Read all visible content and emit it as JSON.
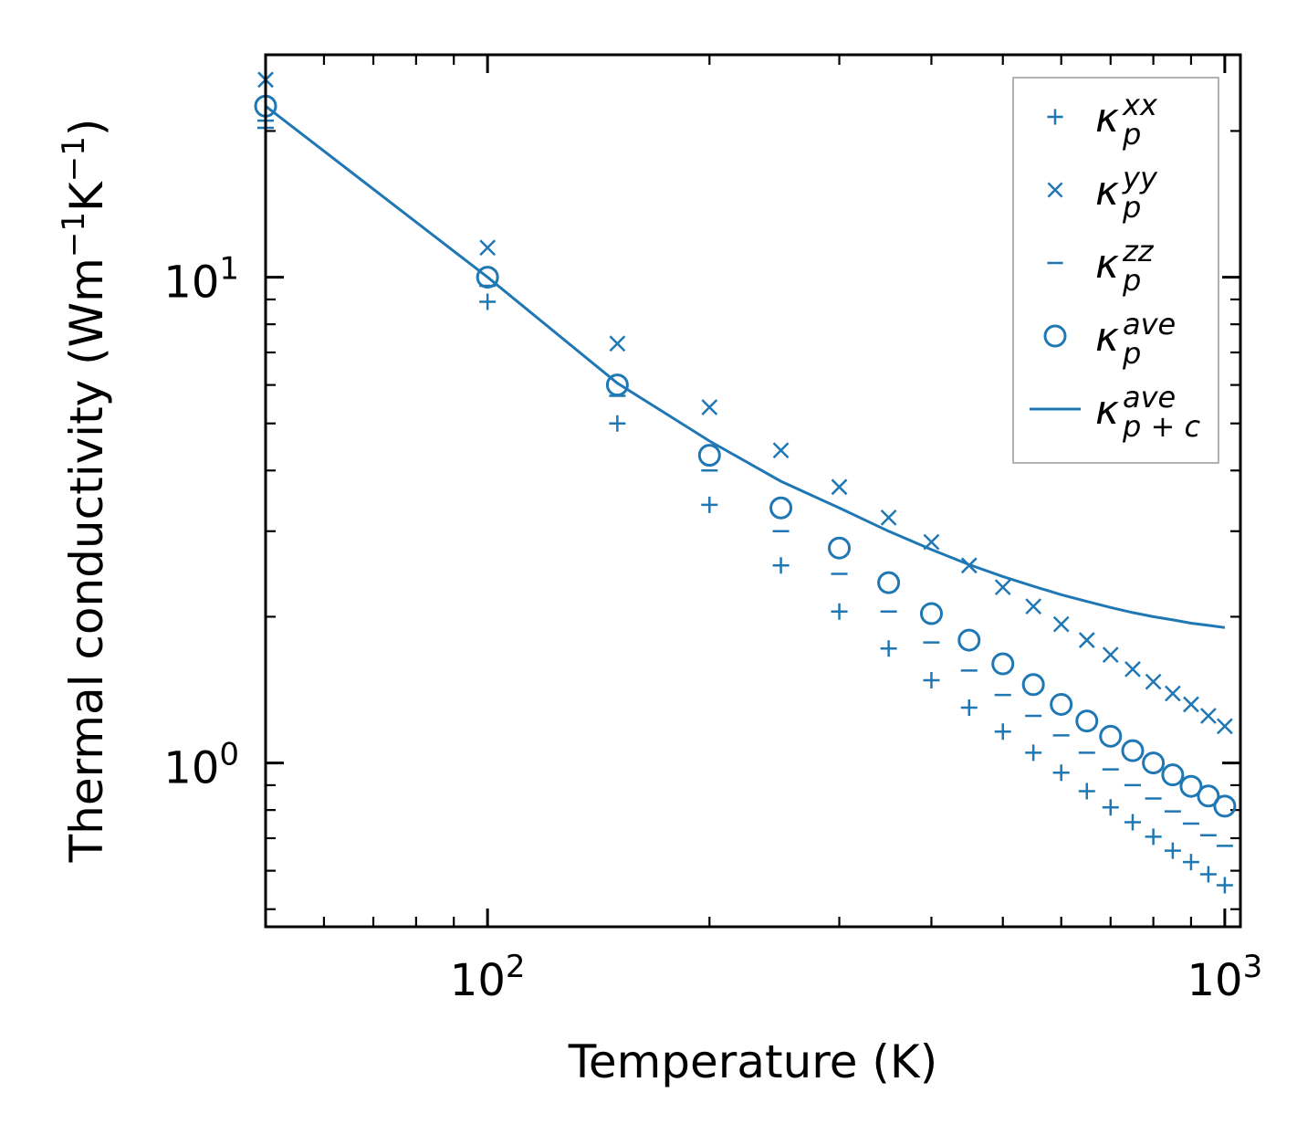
{
  "chart_data": {
    "type": "scatter",
    "title": "",
    "xlabel": "Temperature (K)",
    "ylabel": "Thermal conductivity (Wm",
    "ylabel_parts": {
      "base": "Thermal conductivity (Wm",
      "sup1": "−1",
      "mid": "K",
      "sup2": "−1",
      "end": ")"
    },
    "xscale": "log",
    "yscale": "log",
    "xlim": [
      50,
      1050
    ],
    "ylim": [
      0.46,
      28.7
    ],
    "xticks": [
      {
        "value": 100,
        "base": "10",
        "exp": "2"
      },
      {
        "value": 1000,
        "base": "10",
        "exp": "3"
      }
    ],
    "yticks": [
      {
        "value": 1,
        "base": "10",
        "exp": "0"
      },
      {
        "value": 10,
        "base": "10",
        "exp": "1"
      }
    ],
    "color": "#1f77b4",
    "legend_position": "top-right",
    "x": [
      50,
      100,
      150,
      200,
      250,
      300,
      350,
      400,
      450,
      500,
      550,
      600,
      650,
      700,
      750,
      800,
      850,
      900,
      950,
      1000
    ],
    "series": [
      {
        "name": "kappa_p_xx",
        "label_base": "κ",
        "label_sub": "p",
        "label_sup": "xx",
        "marker": "plus",
        "style": "marker",
        "values": [
          20.3,
          8.9,
          5.0,
          3.4,
          2.55,
          2.05,
          1.72,
          1.48,
          1.3,
          1.16,
          1.05,
          0.955,
          0.875,
          0.81,
          0.755,
          0.705,
          0.66,
          0.625,
          0.59,
          0.56
        ]
      },
      {
        "name": "kappa_p_yy",
        "label_base": "κ",
        "label_sub": "p",
        "label_sup": "yy",
        "marker": "x",
        "style": "marker",
        "values": [
          25.5,
          11.5,
          7.3,
          5.4,
          4.4,
          3.7,
          3.2,
          2.85,
          2.55,
          2.3,
          2.1,
          1.93,
          1.79,
          1.67,
          1.56,
          1.47,
          1.39,
          1.32,
          1.25,
          1.19
        ]
      },
      {
        "name": "kappa_p_zz",
        "label_base": "κ",
        "label_sub": "p",
        "label_sup": "zz",
        "marker": "dash",
        "style": "marker",
        "values": [
          21.0,
          9.6,
          5.7,
          4.0,
          3.0,
          2.45,
          2.05,
          1.77,
          1.55,
          1.38,
          1.25,
          1.14,
          1.05,
          0.97,
          0.9,
          0.845,
          0.795,
          0.75,
          0.71,
          0.675
        ]
      },
      {
        "name": "kappa_p_ave",
        "label_base": "κ",
        "label_sub": "p",
        "label_sup": "ave",
        "marker": "circle",
        "style": "marker",
        "values": [
          22.5,
          10.0,
          6.0,
          4.3,
          3.35,
          2.77,
          2.35,
          2.03,
          1.79,
          1.6,
          1.45,
          1.32,
          1.22,
          1.135,
          1.06,
          1.0,
          0.945,
          0.895,
          0.855,
          0.815
        ]
      },
      {
        "name": "kappa_p_plus_c_ave",
        "label_base": "κ",
        "label_sub": "p + c",
        "label_sup": "ave",
        "marker": "none",
        "style": "line",
        "values": [
          22.5,
          10.0,
          6.05,
          4.6,
          3.8,
          3.35,
          3.0,
          2.75,
          2.56,
          2.42,
          2.31,
          2.22,
          2.15,
          2.09,
          2.04,
          2.0,
          1.97,
          1.94,
          1.92,
          1.9
        ]
      }
    ]
  }
}
